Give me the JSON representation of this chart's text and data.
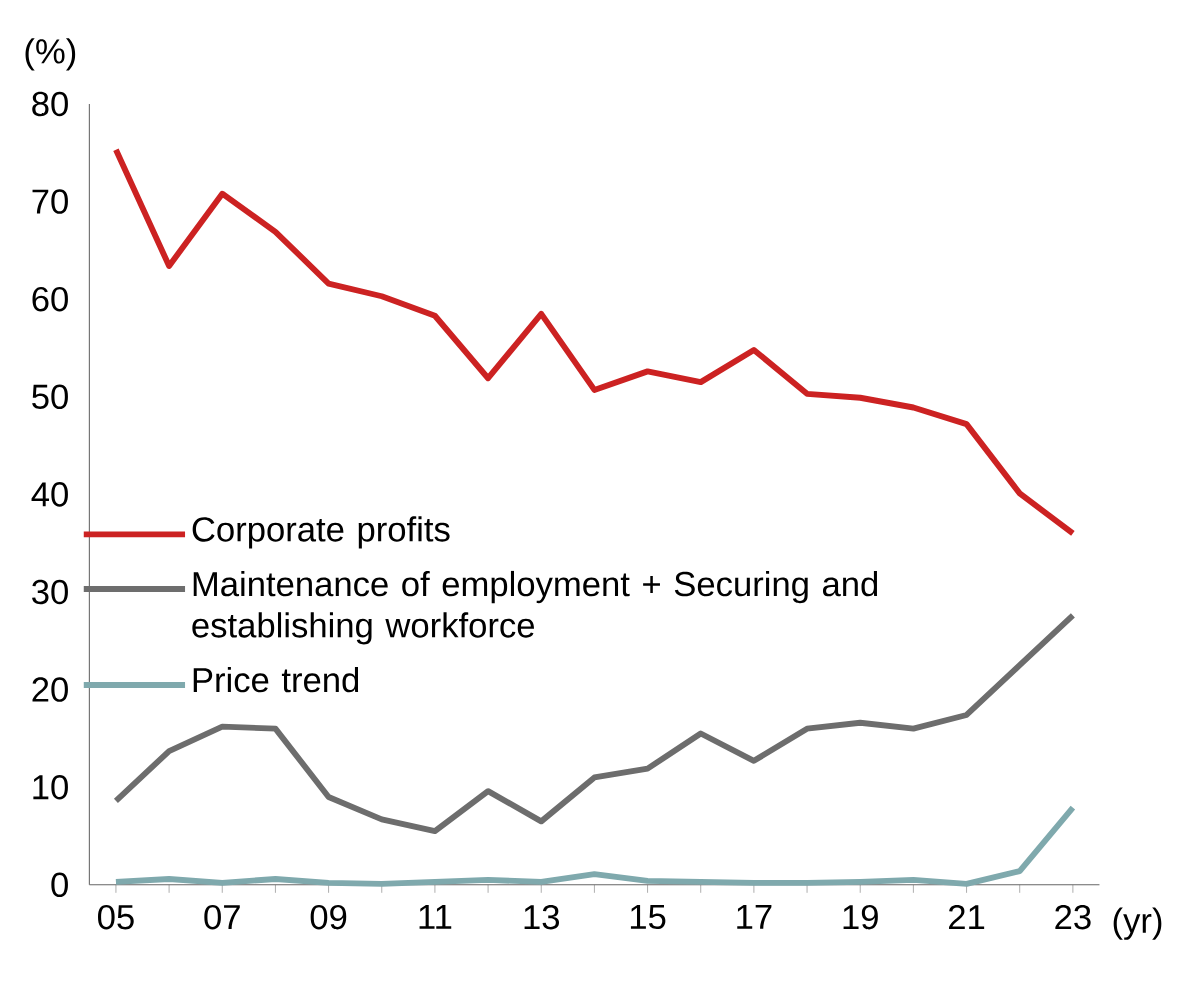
{
  "chart_data": {
    "type": "line",
    "xlabel": "(yr)",
    "ylabel": "(%)",
    "categories": [
      "05",
      null,
      "07",
      null,
      "09",
      null,
      "11",
      null,
      "13",
      null,
      "15",
      null,
      "17",
      null,
      "19",
      null,
      "21",
      null,
      "23"
    ],
    "ylim": [
      0,
      80
    ],
    "yticks": [
      0,
      10,
      20,
      30,
      40,
      50,
      60,
      70,
      80
    ],
    "legend": "left",
    "grid": false,
    "marker": "none",
    "line_style": "solid",
    "series": [
      {
        "name": "Corporate profits",
        "color": "#cc2222",
        "values": [
          75.3,
          63.4,
          70.8,
          66.9,
          61.6,
          60.3,
          58.3,
          51.9,
          58.5,
          50.7,
          52.6,
          51.5,
          54.8,
          50.3,
          49.9,
          48.9,
          47.2,
          40.1,
          36.0
        ]
      },
      {
        "name": "Maintenance of employment + Securing and establishing workforce",
        "color": "#6d6d6d",
        "values": [
          8.6,
          13.7,
          16.2,
          16.0,
          9.0,
          6.7,
          5.5,
          9.6,
          6.5,
          11.0,
          11.9,
          15.5,
          12.7,
          16.0,
          16.6,
          16.0,
          17.4,
          22.5,
          27.6
        ]
      },
      {
        "name": "Price trend",
        "color": "#7fa9ad",
        "values": [
          0.3,
          0.6,
          0.2,
          0.6,
          0.2,
          0.1,
          0.3,
          0.5,
          0.3,
          1.1,
          0.4,
          0.3,
          0.2,
          0.2,
          0.3,
          0.5,
          0.1,
          1.4,
          7.9
        ]
      }
    ]
  }
}
